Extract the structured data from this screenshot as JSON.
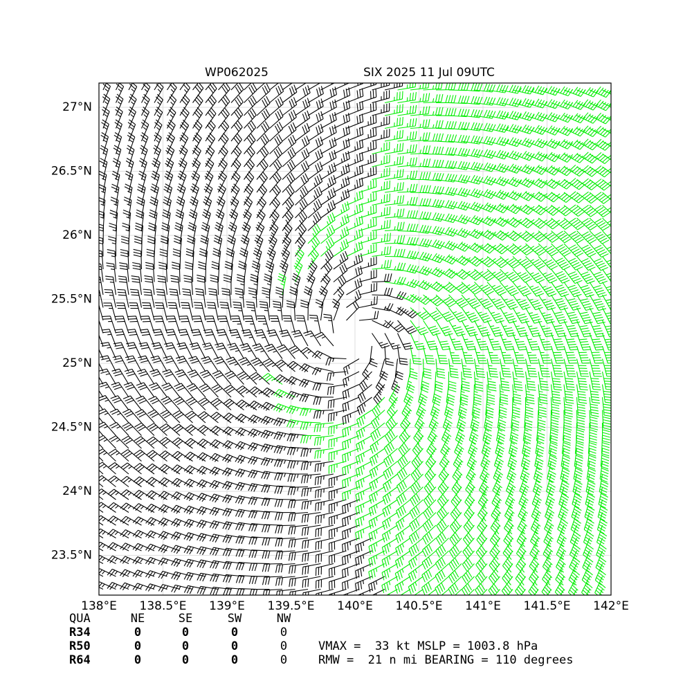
{
  "chart_data": {
    "type": "barbs",
    "title_left": "WP062025",
    "title_right": "SIX 2025 11 Jul 09UTC",
    "xlim": [
      138,
      142
    ],
    "ylim": [
      23.19,
      27.19
    ],
    "xticks": [
      {
        "value": 138,
        "label": "138°E"
      },
      {
        "value": 138.5,
        "label": "138.5°E"
      },
      {
        "value": 139,
        "label": "139°E"
      },
      {
        "value": 139.5,
        "label": "139.5°E"
      },
      {
        "value": 140,
        "label": "140°E"
      },
      {
        "value": 140.5,
        "label": "140.5°E"
      },
      {
        "value": 141,
        "label": "141°E"
      },
      {
        "value": 141.5,
        "label": "141.5°E"
      },
      {
        "value": 142,
        "label": "142°E"
      }
    ],
    "yticks": [
      {
        "value": 23.5,
        "label": "23.5°N"
      },
      {
        "value": 24,
        "label": "24°N"
      },
      {
        "value": 24.5,
        "label": "24.5°N"
      },
      {
        "value": 25,
        "label": "25°N"
      },
      {
        "value": 25.5,
        "label": "25.5°N"
      },
      {
        "value": 26,
        "label": "26°N"
      },
      {
        "value": 26.5,
        "label": "26.5°N"
      },
      {
        "value": 27,
        "label": "27°N"
      }
    ],
    "grid": true
  },
  "table": {
    "header": [
      "QUA",
      "NE",
      "SE",
      "SW",
      "NW"
    ],
    "rows": [
      [
        "R34",
        0,
        0,
        0,
        0
      ],
      [
        "R50",
        0,
        0,
        0,
        0
      ],
      [
        "R64",
        0,
        0,
        0,
        0
      ]
    ]
  },
  "info": [
    "VMAX =  33 kt MSLP = 1003.8 hPa",
    "RMW =  21 n mi BEARING = 110 degrees"
  ]
}
